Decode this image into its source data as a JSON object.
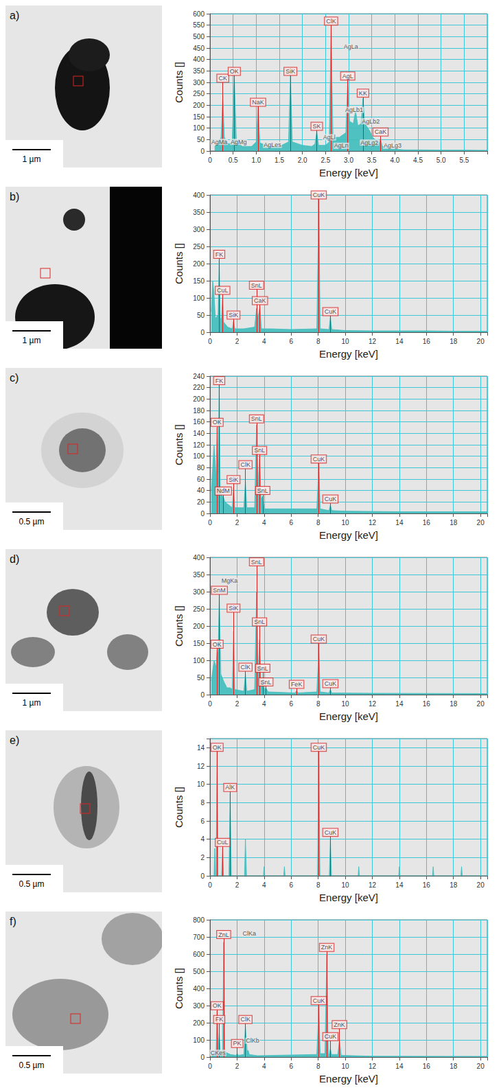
{
  "chart_data": [
    {
      "type": "area",
      "title": "a)",
      "scale_bar": "1 µm",
      "x_label": "Energy [keV]",
      "y_label": "Counts []",
      "color": "#3fbcbc",
      "grid": true,
      "x": [
        0.1,
        0.2,
        0.24,
        0.277,
        0.31,
        0.4,
        0.48,
        0.525,
        0.57,
        0.7,
        0.9,
        1.0,
        1.04,
        1.08,
        1.3,
        1.5,
        1.7,
        1.74,
        1.78,
        2.0,
        2.2,
        2.27,
        2.31,
        2.35,
        2.5,
        2.58,
        2.62,
        2.66,
        2.8,
        2.94,
        2.98,
        3.02,
        3.1,
        3.15,
        3.2,
        3.27,
        3.31,
        3.35,
        3.45,
        3.52,
        3.6,
        3.65,
        3.69,
        3.73,
        3.9,
        4.2,
        4.5,
        5.0,
        5.5,
        6.0
      ],
      "values": [
        20,
        40,
        60,
        240,
        60,
        30,
        40,
        330,
        40,
        20,
        20,
        40,
        195,
        35,
        20,
        20,
        40,
        330,
        40,
        25,
        20,
        30,
        85,
        25,
        25,
        40,
        550,
        60,
        60,
        80,
        310,
        130,
        120,
        175,
        110,
        120,
        230,
        120,
        90,
        60,
        45,
        30,
        50,
        20,
        10,
        5,
        5,
        4,
        4,
        3
      ],
      "xlim": [
        0,
        6
      ],
      "xticks": [
        0,
        0.5,
        {
          "value": 1,
          "label": "1.0"
        },
        1.5,
        {
          "value": 2,
          "label": "2.0"
        },
        2.5,
        {
          "value": 3,
          "label": "3.0"
        },
        3.5,
        {
          "value": 4,
          "label": "4.0"
        },
        4.5,
        {
          "value": 5,
          "label": "5.0"
        },
        5.5
      ],
      "ylim": [
        0,
        600
      ],
      "yticks": [
        0,
        50,
        100,
        150,
        200,
        250,
        300,
        350,
        400,
        450,
        500,
        550,
        600
      ],
      "peak_labels": [
        {
          "text": "CK",
          "x": 0.277,
          "y": 300
        },
        {
          "text": "OK",
          "x": 0.525,
          "y": 330
        },
        {
          "text": "NaK",
          "x": 1.04,
          "y": 195
        },
        {
          "text": "SiK",
          "x": 1.74,
          "y": 330
        },
        {
          "text": "SK",
          "x": 2.31,
          "y": 90
        },
        {
          "text": "ClK",
          "x": 2.62,
          "y": 550
        },
        {
          "text": "AgL",
          "x": 2.98,
          "y": 310
        },
        {
          "text": "KK",
          "x": 3.31,
          "y": 235
        },
        {
          "text": "CaK",
          "x": 3.69,
          "y": 65
        }
      ],
      "annotations": [
        {
          "text": "AgMa",
          "x": 0.2,
          "y": 25
        },
        {
          "text": "AgMg",
          "x": 0.62,
          "y": 25
        },
        {
          "text": "AgLes",
          "x": 1.35,
          "y": 12
        },
        {
          "text": "AgLl",
          "x": 2.58,
          "y": 45
        },
        {
          "text": "AgLn",
          "x": 2.84,
          "y": 8
        },
        {
          "text": "AgLa",
          "x": 3.05,
          "y": 440
        },
        {
          "text": "AgLb1",
          "x": 3.12,
          "y": 165
        },
        {
          "text": "AgLb2",
          "x": 3.48,
          "y": 115
        },
        {
          "text": "AgLg2",
          "x": 3.45,
          "y": 22
        },
        {
          "text": "AgLg3",
          "x": 3.95,
          "y": 8
        }
      ]
    },
    {
      "type": "area",
      "title": "b)",
      "scale_bar": "1 µm",
      "x_label": "Energy [keV]",
      "y_label": "Counts []",
      "color": "#3fbcbc",
      "grid": true,
      "x": [
        0.1,
        0.2,
        0.28,
        0.4,
        0.6,
        0.68,
        0.76,
        0.85,
        0.93,
        1.0,
        1.3,
        1.65,
        1.74,
        1.83,
        2.5,
        3.3,
        3.44,
        3.52,
        3.6,
        3.69,
        3.8,
        4.5,
        6,
        7.9,
        8.04,
        8.15,
        8.8,
        8.9,
        9.0,
        10,
        12,
        14,
        16,
        18,
        20,
        20.5
      ],
      "values": [
        60,
        150,
        120,
        40,
        50,
        210,
        40,
        40,
        100,
        30,
        15,
        10,
        35,
        10,
        10,
        15,
        70,
        40,
        55,
        75,
        10,
        10,
        8,
        10,
        385,
        10,
        8,
        45,
        8,
        5,
        4,
        4,
        4,
        3,
        3,
        3
      ],
      "xlim": [
        0,
        20.5
      ],
      "xticks": [
        0,
        2,
        4,
        6,
        8,
        10,
        12,
        14,
        16,
        18,
        20
      ],
      "ylim": [
        0,
        400
      ],
      "yticks": [
        0,
        50,
        100,
        150,
        200,
        250,
        300,
        350,
        400
      ],
      "peak_labels": [
        {
          "text": "FK",
          "x": 0.68,
          "y": 215
        },
        {
          "text": "CuL",
          "x": 0.93,
          "y": 110
        },
        {
          "text": "SiK",
          "x": 1.74,
          "y": 38
        },
        {
          "text": "SnL",
          "x": 3.44,
          "y": 125
        },
        {
          "text": "CaK",
          "x": 3.69,
          "y": 80
        },
        {
          "text": "CuK",
          "x": 8.04,
          "y": 388
        },
        {
          "text": "CuK",
          "x": 8.9,
          "y": 48
        }
      ],
      "annotations": []
    },
    {
      "type": "area",
      "title": "c)",
      "scale_bar": "0.5 µm",
      "x_label": "Energy [keV]",
      "y_label": "Counts []",
      "color": "#3fbcbc",
      "grid": true,
      "x": [
        0.1,
        0.3,
        0.45,
        0.52,
        0.6,
        0.68,
        0.76,
        0.9,
        0.98,
        1.1,
        1.65,
        1.74,
        1.83,
        2.5,
        2.62,
        2.72,
        3.3,
        3.44,
        3.55,
        3.66,
        3.78,
        3.9,
        4.0,
        5,
        7.9,
        8.04,
        8.15,
        8.8,
        8.9,
        9.0,
        10,
        14,
        20.5
      ],
      "values": [
        40,
        120,
        60,
        150,
        70,
        225,
        40,
        30,
        30,
        20,
        10,
        45,
        10,
        10,
        55,
        10,
        10,
        155,
        50,
        100,
        25,
        30,
        8,
        8,
        8,
        85,
        8,
        5,
        15,
        5,
        4,
        3,
        3
      ],
      "xlim": [
        0,
        20.5
      ],
      "xticks": [
        0,
        2,
        4,
        6,
        8,
        10,
        12,
        14,
        16,
        18,
        20
      ],
      "ylim": [
        0,
        240
      ],
      "yticks": [
        0,
        20,
        40,
        60,
        80,
        100,
        120,
        140,
        160,
        180,
        200,
        220,
        240
      ],
      "peak_labels": [
        {
          "text": "OK",
          "x": 0.52,
          "y": 152
        },
        {
          "text": "FK",
          "x": 0.68,
          "y": 225
        },
        {
          "text": "NdM",
          "x": 0.98,
          "y": 32
        },
        {
          "text": "SiK",
          "x": 1.74,
          "y": 52
        },
        {
          "text": "ClK",
          "x": 2.62,
          "y": 78
        },
        {
          "text": "SnL",
          "x": 3.44,
          "y": 158
        },
        {
          "text": "SnL",
          "x": 3.66,
          "y": 103
        },
        {
          "text": "SnL",
          "x": 3.9,
          "y": 33
        },
        {
          "text": "CuK",
          "x": 8.04,
          "y": 88
        },
        {
          "text": "CuK",
          "x": 8.9,
          "y": 18
        }
      ],
      "annotations": []
    },
    {
      "type": "area",
      "title": "d)",
      "scale_bar": "1 µm",
      "x_label": "Energy [keV]",
      "y_label": "Counts []",
      "color": "#3fbcbc",
      "grid": true,
      "x": [
        0.1,
        0.3,
        0.45,
        0.52,
        0.6,
        0.69,
        0.8,
        1.0,
        1.25,
        1.5,
        1.65,
        1.74,
        1.83,
        2.5,
        2.62,
        2.72,
        3.3,
        3.44,
        3.55,
        3.66,
        3.78,
        3.9,
        4.0,
        4.13,
        4.3,
        6.3,
        6.4,
        6.5,
        7.9,
        8.04,
        8.15,
        8.8,
        8.9,
        9.0,
        12,
        20.5
      ],
      "values": [
        40,
        100,
        80,
        130,
        120,
        290,
        60,
        40,
        20,
        20,
        15,
        185,
        15,
        10,
        60,
        10,
        15,
        300,
        60,
        160,
        30,
        40,
        10,
        20,
        8,
        5,
        12,
        5,
        8,
        130,
        8,
        5,
        15,
        5,
        4,
        3
      ],
      "xlim": [
        0,
        20.5
      ],
      "xticks": [
        0,
        2,
        4,
        6,
        8,
        10,
        12,
        14,
        16,
        18,
        20
      ],
      "ylim": [
        0,
        400
      ],
      "yticks": [
        0,
        50,
        100,
        150,
        200,
        250,
        300,
        350,
        400
      ],
      "peak_labels": [
        {
          "text": "OK",
          "x": 0.52,
          "y": 135
        },
        {
          "text": "SnM",
          "x": 0.69,
          "y": 292
        },
        {
          "text": "SiK",
          "x": 1.74,
          "y": 240
        },
        {
          "text": "ClK",
          "x": 2.62,
          "y": 68
        },
        {
          "text": "SnL",
          "x": 3.44,
          "y": 375
        },
        {
          "text": "SnL",
          "x": 3.66,
          "y": 200
        },
        {
          "text": "SnL",
          "x": 3.9,
          "y": 65
        },
        {
          "text": "SnL",
          "x": 4.13,
          "y": 25
        },
        {
          "text": "FeK",
          "x": 6.4,
          "y": 18
        },
        {
          "text": "CuK",
          "x": 8.04,
          "y": 150
        },
        {
          "text": "CuK",
          "x": 8.9,
          "y": 20
        }
      ],
      "annotations": [
        {
          "text": "MgKa",
          "x": 1.45,
          "y": 322
        }
      ]
    },
    {
      "type": "area",
      "title": "e)",
      "scale_bar": "0.5 µm",
      "x_label": "Energy [keV]",
      "y_label": "Counts []",
      "color": "#3fbcbc",
      "grid": true,
      "x": [
        0,
        0.3,
        0.35,
        0.4,
        0.45,
        0.52,
        0.6,
        0.85,
        0.93,
        1.0,
        1.4,
        1.49,
        1.58,
        2.55,
        2.62,
        2.7,
        3.95,
        4.0,
        4.05,
        5.45,
        5.5,
        5.55,
        7.95,
        8.04,
        8.13,
        8.82,
        8.9,
        8.98,
        10.95,
        11,
        11.05,
        13.95,
        14,
        14.05,
        16.45,
        16.5,
        16.55,
        18.55,
        18.6,
        18.65,
        20.5
      ],
      "values": [
        0,
        0,
        3,
        0,
        0,
        14,
        0,
        0,
        3,
        0,
        0,
        9,
        0,
        0,
        4,
        0,
        0,
        1,
        0,
        0,
        1,
        0,
        0,
        14,
        0,
        0,
        4,
        0,
        0,
        1,
        0,
        0,
        1,
        0,
        0,
        1,
        0,
        0,
        1,
        0,
        0
      ],
      "xlim": [
        0,
        20.5
      ],
      "xticks": [
        0,
        2,
        4,
        6,
        8,
        10,
        12,
        14,
        16,
        18,
        20
      ],
      "ylim": [
        0,
        15
      ],
      "yticks": [
        0,
        2,
        4,
        6,
        8,
        10,
        12,
        14
      ],
      "peak_labels": [
        {
          "text": "OK",
          "x": 0.52,
          "y": 13.6
        },
        {
          "text": "CuL",
          "x": 0.93,
          "y": 3.2
        },
        {
          "text": "AlK",
          "x": 1.49,
          "y": 9.2
        },
        {
          "text": "CuK",
          "x": 8.04,
          "y": 13.6
        },
        {
          "text": "CuK",
          "x": 8.9,
          "y": 4.3
        }
      ],
      "annotations": []
    },
    {
      "type": "area",
      "title": "f)",
      "scale_bar": "0.5 µm",
      "x_label": "Energy [keV]",
      "y_label": "Counts []",
      "color": "#3fbcbc",
      "grid": true,
      "x": [
        0.1,
        0.25,
        0.3,
        0.35,
        0.45,
        0.52,
        0.6,
        0.68,
        0.76,
        0.93,
        1.01,
        1.1,
        1.5,
        1.92,
        2.01,
        2.1,
        2.5,
        2.62,
        2.75,
        2.82,
        2.9,
        3.5,
        7.9,
        8.04,
        8.15,
        8.5,
        8.63,
        8.75,
        8.82,
        8.9,
        8.98,
        9.45,
        9.57,
        9.7,
        12,
        20.5
      ],
      "values": [
        20,
        20,
        40,
        15,
        20,
        270,
        40,
        140,
        30,
        40,
        670,
        30,
        15,
        10,
        20,
        10,
        15,
        180,
        30,
        40,
        15,
        8,
        15,
        290,
        20,
        20,
        600,
        20,
        15,
        50,
        15,
        15,
        100,
        10,
        5,
        4
      ],
      "xlim": [
        0,
        20.5
      ],
      "xticks": [
        0,
        2,
        4,
        6,
        8,
        10,
        12,
        14,
        16,
        18,
        20
      ],
      "ylim": [
        0,
        800
      ],
      "yticks": [
        0,
        100,
        200,
        300,
        400,
        500,
        600,
        700,
        800
      ],
      "peak_labels": [
        {
          "text": "OK",
          "x": 0.52,
          "y": 275
        },
        {
          "text": "FK",
          "x": 0.68,
          "y": 195
        },
        {
          "text": "ZnL",
          "x": 1.01,
          "y": 690
        },
        {
          "text": "PK",
          "x": 2.01,
          "y": 55
        },
        {
          "text": "ClK",
          "x": 2.62,
          "y": 195
        },
        {
          "text": "CuK",
          "x": 8.04,
          "y": 305
        },
        {
          "text": "ZnK",
          "x": 8.63,
          "y": 615
        },
        {
          "text": "CuK",
          "x": 8.9,
          "y": 95
        },
        {
          "text": "ZnK",
          "x": 9.57,
          "y": 165
        }
      ],
      "annotations": [
        {
          "text": "CKes",
          "x": 0.6,
          "y": 5
        },
        {
          "text": "ClKa",
          "x": 2.9,
          "y": 700
        },
        {
          "text": "ClKb",
          "x": 3.15,
          "y": 75
        }
      ]
    }
  ]
}
